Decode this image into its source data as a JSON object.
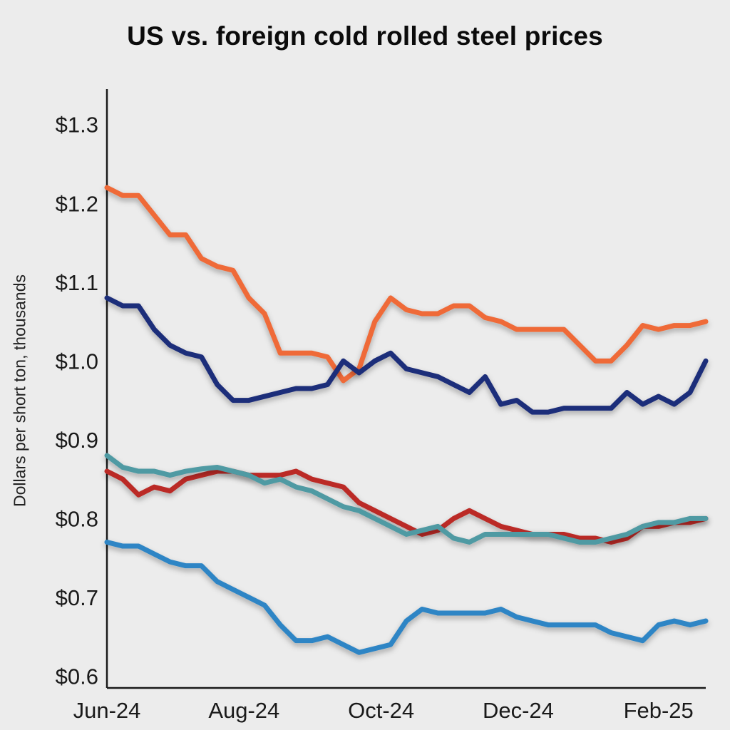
{
  "page": {
    "background": "#ececec"
  },
  "chart_data": {
    "type": "line",
    "title": "US vs. foreign cold rolled steel prices",
    "ylabel": "Dollars per short ton, thousands",
    "xlabel": "",
    "ylim": [
      0.6,
      1.3
    ],
    "grid": false,
    "legend": "none",
    "y_tick_prefix": "$",
    "y_ticks": [
      0.6,
      0.7,
      0.8,
      0.9,
      1.0,
      1.1,
      1.2,
      1.3
    ],
    "x_unit": "weeks from Jun-24",
    "x_ticks": [
      {
        "pos": 0.0,
        "label": "Jun-24"
      },
      {
        "pos": 8.7,
        "label": "Aug-24"
      },
      {
        "pos": 17.4,
        "label": "Oct-24"
      },
      {
        "pos": 26.1,
        "label": "Dec-24"
      },
      {
        "pos": 35.0,
        "label": "Feb-25"
      }
    ],
    "series": [
      {
        "name": "orange-line",
        "color": "#ef6a37",
        "values": [
          1.22,
          1.21,
          1.21,
          1.185,
          1.16,
          1.16,
          1.13,
          1.12,
          1.115,
          1.08,
          1.06,
          1.01,
          1.01,
          1.01,
          1.005,
          0.975,
          0.99,
          1.05,
          1.08,
          1.065,
          1.06,
          1.06,
          1.07,
          1.07,
          1.055,
          1.05,
          1.04,
          1.04,
          1.04,
          1.04,
          1.02,
          1.0,
          1.0,
          1.02,
          1.045,
          1.04,
          1.045,
          1.045,
          1.05
        ]
      },
      {
        "name": "navy-line",
        "color": "#1f2d7a",
        "values": [
          1.08,
          1.07,
          1.07,
          1.04,
          1.02,
          1.01,
          1.005,
          0.97,
          0.95,
          0.95,
          0.955,
          0.96,
          0.965,
          0.965,
          0.97,
          1.0,
          0.985,
          1.0,
          1.01,
          0.99,
          0.985,
          0.98,
          0.97,
          0.96,
          0.98,
          0.945,
          0.95,
          0.935,
          0.935,
          0.94,
          0.94,
          0.94,
          0.94,
          0.96,
          0.945,
          0.955,
          0.945,
          0.96,
          1.0
        ]
      },
      {
        "name": "red-line",
        "color": "#bb2b26",
        "values": [
          0.86,
          0.85,
          0.83,
          0.84,
          0.835,
          0.85,
          0.855,
          0.86,
          0.86,
          0.855,
          0.855,
          0.855,
          0.86,
          0.85,
          0.845,
          0.84,
          0.82,
          0.81,
          0.8,
          0.79,
          0.78,
          0.785,
          0.8,
          0.81,
          0.8,
          0.79,
          0.785,
          0.78,
          0.78,
          0.78,
          0.775,
          0.775,
          0.77,
          0.775,
          0.79,
          0.79,
          0.795,
          0.795,
          0.8
        ]
      },
      {
        "name": "teal-line",
        "color": "#509aa3",
        "values": [
          0.88,
          0.865,
          0.86,
          0.86,
          0.855,
          0.86,
          0.863,
          0.865,
          0.86,
          0.855,
          0.845,
          0.85,
          0.84,
          0.835,
          0.825,
          0.815,
          0.81,
          0.8,
          0.79,
          0.78,
          0.785,
          0.79,
          0.775,
          0.77,
          0.78,
          0.78,
          0.78,
          0.78,
          0.78,
          0.775,
          0.77,
          0.77,
          0.775,
          0.78,
          0.79,
          0.795,
          0.795,
          0.8,
          0.8
        ]
      },
      {
        "name": "lightblue-line",
        "color": "#2d85c5",
        "values": [
          0.77,
          0.765,
          0.765,
          0.755,
          0.745,
          0.74,
          0.74,
          0.72,
          0.71,
          0.7,
          0.69,
          0.665,
          0.645,
          0.645,
          0.65,
          0.64,
          0.63,
          0.635,
          0.64,
          0.67,
          0.685,
          0.68,
          0.68,
          0.68,
          0.68,
          0.685,
          0.675,
          0.67,
          0.665,
          0.665,
          0.665,
          0.665,
          0.655,
          0.65,
          0.645,
          0.665,
          0.67,
          0.665,
          0.67
        ]
      }
    ]
  }
}
